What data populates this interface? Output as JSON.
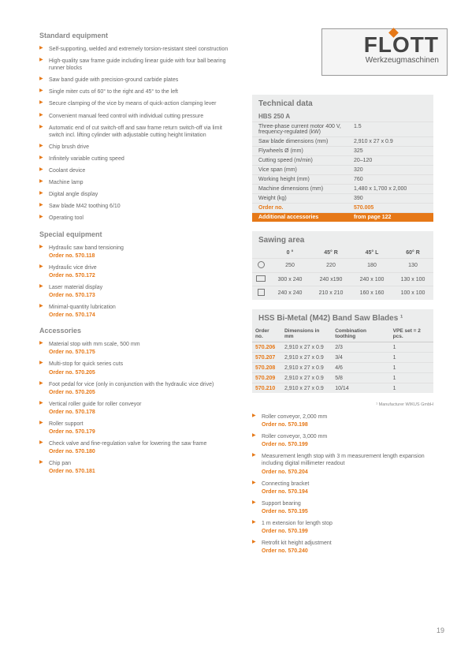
{
  "logo": {
    "main": "FLOTT",
    "sub": "Werkzeugmaschinen"
  },
  "standard": {
    "title": "Standard equipment",
    "items": [
      "Self-supporting, welded and extremely torsion-resistant steel construction",
      "High-quality saw frame guide including linear guide with four ball bearing runner blocks",
      "Saw band guide with precision-ground carbide plates",
      "Single miter cuts of 60° to the right and 45° to the left",
      "Secure clamping of the vice by means of quick-action clamping lever",
      "Convenient manual feed control with individual cutting pressure",
      "Automatic end of cut switch-off and saw frame return switch-off via limit switch incl. lifting cylinder with adjustable cutting height limitation",
      "Chip brush drive",
      "Infinitely variable cutting speed",
      "Coolant device",
      "Machine lamp",
      "Digital angle display",
      "Saw blade M42 toothing 6/10",
      "Operating tool"
    ]
  },
  "special": {
    "title": "Special equipment",
    "items": [
      {
        "text": "Hydraulic saw band tensioning",
        "order": "Order no. 570.118"
      },
      {
        "text": "Hydraulic vice drive",
        "order": "Order no. 570.172"
      },
      {
        "text": "Laser material display",
        "order": "Order no. 570.173"
      },
      {
        "text": "Minimal-quantity lubrication",
        "order": "Order no. 570.174"
      }
    ]
  },
  "accessories": {
    "title": "Accessories",
    "items": [
      {
        "text": "Material stop with mm scale, 500 mm",
        "order": "Order no. 570.175"
      },
      {
        "text": "Multi-stop for quick series cuts",
        "order": "Order no. 570.205"
      },
      {
        "text": "Foot pedal for vice (only in conjunction with the hydraulic vice drive)",
        "order": "Order no. 570.205"
      },
      {
        "text": "Vertical roller guide for roller conveyor",
        "order": "Order no. 570.178"
      },
      {
        "text": "Roller support",
        "order": "Order no. 570.179"
      },
      {
        "text": "Check valve and fine-regulation valve for lowering the saw frame",
        "order": "Order no. 570.180"
      },
      {
        "text": "Chip pan",
        "order": "Order no. 570.181"
      }
    ]
  },
  "tech": {
    "title": "Technical data",
    "model": "HBS 250 A",
    "rows": [
      {
        "label": "Three-phase current motor 400 V, frequency-regulated (kW)",
        "value": "1.5"
      },
      {
        "label": "Saw blade dimensions (mm)",
        "value": "2,910 x 27 x 0.9"
      },
      {
        "label": "Flywheels Ø (mm)",
        "value": "325"
      },
      {
        "label": "Cutting speed (m/min)",
        "value": "20–120"
      },
      {
        "label": "Vice span (mm)",
        "value": "320"
      },
      {
        "label": "Working height (mm)",
        "value": "760"
      },
      {
        "label": "Machine dimensions (mm)",
        "value": "1,480 x 1,700 x 2,000"
      },
      {
        "label": "Weight (kg)",
        "value": "390"
      }
    ],
    "orderRow": {
      "label": "Order no.",
      "value": "570.005"
    },
    "accRow": {
      "label": "Additional accessories",
      "value": "from page 122"
    }
  },
  "sawing": {
    "title": "Sawing area",
    "headers": [
      "0 °",
      "45° R",
      "45° L",
      "60° R"
    ],
    "rows": [
      {
        "shape": "circle",
        "cells": [
          "250",
          "220",
          "180",
          "130"
        ]
      },
      {
        "shape": "rect",
        "cells": [
          "300 x 240",
          "240 x190",
          "240 x 100",
          "130 x 100"
        ]
      },
      {
        "shape": "square",
        "cells": [
          "240 x 240",
          "210 x 210",
          "160 x 160",
          "100 x 100"
        ]
      }
    ]
  },
  "blades": {
    "title": "HSS Bi-Metal (M42) Band Saw Blades ¹",
    "headers": [
      "Order no.",
      "Dimensions in mm",
      "Combination toothing",
      "VPE set = 2 pcs."
    ],
    "rows": [
      {
        "order": "570.206",
        "dim": "2,910 x 27 x 0.9",
        "tooth": "2/3",
        "vpe": "1"
      },
      {
        "order": "570.207",
        "dim": "2,910 x 27 x 0.9",
        "tooth": "3/4",
        "vpe": "1"
      },
      {
        "order": "570.208",
        "dim": "2,910 x 27 x 0.9",
        "tooth": "4/6",
        "vpe": "1"
      },
      {
        "order": "570.209",
        "dim": "2,910 x 27 x 0.9",
        "tooth": "5/8",
        "vpe": "1"
      },
      {
        "order": "570.210",
        "dim": "2,910 x 27 x 0.9",
        "tooth": "10/14",
        "vpe": "1"
      }
    ],
    "footnote": "¹ Manufacturer WIKUS GmbH"
  },
  "rightLower": {
    "items": [
      {
        "text": "Roller conveyor, 2,000 mm",
        "order": "Order no. 570.198"
      },
      {
        "text": "Roller conveyor, 3,000 mm",
        "order": "Order no. 570.199"
      },
      {
        "text": "Measurement length stop with 3 m measurement length expansion including digital millimeter readout",
        "order": "Order no. 570.204"
      },
      {
        "text": "Connecting bracket",
        "order": "Order no. 570.194"
      },
      {
        "text": "Support bearing",
        "order": "Order no. 570.195"
      },
      {
        "text": "1 m extension for length stop",
        "order": "Order no. 570.199"
      },
      {
        "text": "Retrofit kit height adjustment",
        "order": "Order no. 570.240"
      }
    ]
  },
  "pageNumber": "19"
}
